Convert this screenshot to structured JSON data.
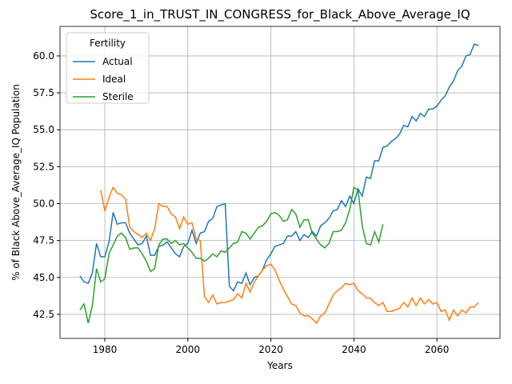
{
  "chart_data": {
    "type": "line",
    "title": "Score_1_in_TRUST_IN_CONGRESS_for_Black_Above_Average_IQ",
    "x_label": "Years",
    "y_label": "% of Black Above_Average_IQ Population",
    "legend_title": "Fertility",
    "legend_position": "upper left",
    "grid": true,
    "xlim": [
      1969.2,
      2075.2
    ],
    "ylim": [
      40.87,
      62.0
    ],
    "xticks": [
      1980,
      2000,
      2020,
      2040,
      2060
    ],
    "yticks": [
      42.5,
      {
        "value": 45,
        "label": "45.0"
      },
      47.5,
      {
        "value": 50,
        "label": "50.0"
      },
      52.5,
      {
        "value": 55,
        "label": "55.0"
      },
      57.5,
      {
        "value": 60,
        "label": "60.0"
      }
    ],
    "x": [
      1974,
      1975,
      1976,
      1977,
      1978,
      1979,
      1980,
      1981,
      1982,
      1983,
      1984,
      1985,
      1986,
      1987,
      1988,
      1989,
      1990,
      1991,
      1992,
      1993,
      1994,
      1995,
      1996,
      1997,
      1998,
      1999,
      2000,
      2001,
      2002,
      2003,
      2004,
      2005,
      2006,
      2007,
      2008,
      2009,
      2010,
      2011,
      2012,
      2013,
      2014,
      2015,
      2016,
      2017,
      2018,
      2019,
      2020,
      2021,
      2022,
      2023,
      2024,
      2025,
      2026,
      2027,
      2028,
      2029,
      2030,
      2031,
      2032,
      2033,
      2034,
      2035,
      2036,
      2037,
      2038,
      2039,
      2040,
      2041,
      2042,
      2043,
      2044,
      2045,
      2046,
      2047,
      2048,
      2049,
      2050,
      2051,
      2052,
      2053,
      2054,
      2055,
      2056,
      2057,
      2058,
      2059,
      2060,
      2061,
      2062,
      2063,
      2064,
      2065,
      2066,
      2067,
      2068,
      2069,
      2070
    ],
    "series": [
      {
        "name": "Actual",
        "color": "#1f77b4",
        "values": [
          45.1,
          44.7,
          44.6,
          45.3,
          47.3,
          46.4,
          46.4,
          47.4,
          49.4,
          48.6,
          48.7,
          48.7,
          48.0,
          47.6,
          47.2,
          47.3,
          47.8,
          46.5,
          46.5,
          47.1,
          47.2,
          47.4,
          47.0,
          46.6,
          46.4,
          47.1,
          47.3,
          48.2,
          47.3,
          48.0,
          48.1,
          48.8,
          49.0,
          49.8,
          49.9,
          50.0,
          44.4,
          44.1,
          44.7,
          44.6,
          45.3,
          44.5,
          45.0,
          45.1,
          45.5,
          46.2,
          46.6,
          47.1,
          47.2,
          47.3,
          47.8,
          47.8,
          48.1,
          47.5,
          47.9,
          47.7,
          48.1,
          47.8,
          48.5,
          48.7,
          49.0,
          49.5,
          49.6,
          50.2,
          49.8,
          50.5,
          50.0,
          51.0,
          50.5,
          51.8,
          51.7,
          52.9,
          52.9,
          53.8,
          53.9,
          54.2,
          54.4,
          54.7,
          55.3,
          55.2,
          55.9,
          55.6,
          56.1,
          55.9,
          56.4,
          56.4,
          56.6,
          57.0,
          57.3,
          57.9,
          58.3,
          59.0,
          59.3,
          60.0,
          60.1,
          60.8,
          60.7
        ]
      },
      {
        "name": "Ideal",
        "color": "#ff7f0e",
        "values": [
          null,
          null,
          null,
          null,
          null,
          50.9,
          49.5,
          50.4,
          51.1,
          50.7,
          50.6,
          50.3,
          48.4,
          48.1,
          47.9,
          47.7,
          48.0,
          47.5,
          48.3,
          50.0,
          49.8,
          49.8,
          49.3,
          49.1,
          48.3,
          49.1,
          48.6,
          48.7,
          47.6,
          47.5,
          43.7,
          43.3,
          43.8,
          43.2,
          43.3,
          43.3,
          43.4,
          43.5,
          43.9,
          43.6,
          44.6,
          44.0,
          44.7,
          45.1,
          45.5,
          45.8,
          45.9,
          45.5,
          44.8,
          44.2,
          43.7,
          43.2,
          43.1,
          42.6,
          42.4,
          42.4,
          42.2,
          41.9,
          42.4,
          42.6,
          43.2,
          43.8,
          44.1,
          44.3,
          44.6,
          44.5,
          44.6,
          44.1,
          43.9,
          43.6,
          43.6,
          43.3,
          43.1,
          43.3,
          42.7,
          42.7,
          42.8,
          42.9,
          43.3,
          43.0,
          43.6,
          43.1,
          43.6,
          43.2,
          43.5,
          43.2,
          43.3,
          42.7,
          42.8,
          42.1,
          42.8,
          42.4,
          42.8,
          42.6,
          43.0,
          43.0,
          43.3
        ]
      },
      {
        "name": "Sterile",
        "color": "#2ca02c",
        "values": [
          42.8,
          43.2,
          41.9,
          43.1,
          45.6,
          44.7,
          44.9,
          46.6,
          47.2,
          47.8,
          48.0,
          47.7,
          46.9,
          47.0,
          47.0,
          46.6,
          46.1,
          45.4,
          45.6,
          47.2,
          47.6,
          47.6,
          47.3,
          47.5,
          47.2,
          47.3,
          47.0,
          46.7,
          46.3,
          46.3,
          46.1,
          46.3,
          46.6,
          46.4,
          46.8,
          46.7,
          47.0,
          47.3,
          47.4,
          48.1,
          48.0,
          47.6,
          48.0,
          48.4,
          48.5,
          48.8,
          49.3,
          49.4,
          49.2,
          48.8,
          48.9,
          49.6,
          49.3,
          48.4,
          48.9,
          48.9,
          48.0,
          47.6,
          47.2,
          47.0,
          47.3,
          48.1,
          48.1,
          48.2,
          48.7,
          49.6,
          51.1,
          50.9,
          48.5,
          47.3,
          47.2,
          48.1,
          47.4,
          48.6,
          null,
          null,
          null,
          null,
          null,
          null,
          null,
          null,
          null,
          null,
          null,
          null,
          null,
          null,
          null,
          null,
          null,
          null,
          null,
          null,
          null,
          null,
          null
        ]
      }
    ]
  }
}
